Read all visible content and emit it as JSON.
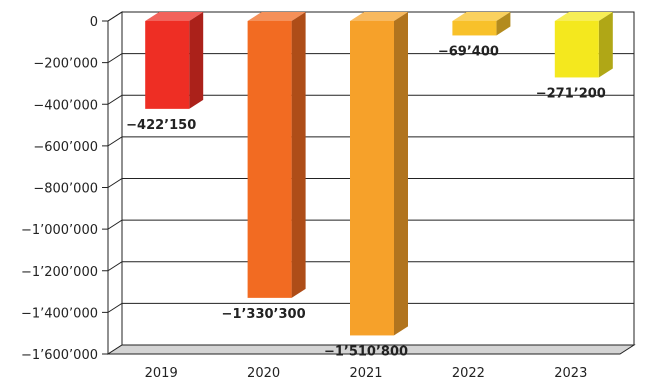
{
  "chart_data": {
    "type": "bar",
    "categories": [
      "2019",
      "2020",
      "2021",
      "2022",
      "2023"
    ],
    "values": [
      -422150,
      -1330300,
      -1510800,
      -69400,
      -271200
    ],
    "value_labels": [
      "−422’150",
      "−1’330’300",
      "−1’510’800",
      "−69’400",
      "−271’200"
    ],
    "y_ticks": [
      0,
      -200000,
      -400000,
      -600000,
      -800000,
      -1000000,
      -1200000,
      -1400000,
      -1600000
    ],
    "y_tick_labels": [
      "0",
      "−200’000",
      "−400’000",
      "−600’000",
      "−800’000",
      "−1’000’000",
      "−1’200’000",
      "−1’400’000",
      "−1’600’000"
    ],
    "ylim": [
      -1600000,
      0
    ],
    "grid": true,
    "bar_style": "3d",
    "colors": [
      "#ee2e24",
      "#f26b22",
      "#f6a12a",
      "#f8c12a",
      "#f4e81e"
    ],
    "title": "",
    "xlabel": "",
    "ylabel": ""
  }
}
